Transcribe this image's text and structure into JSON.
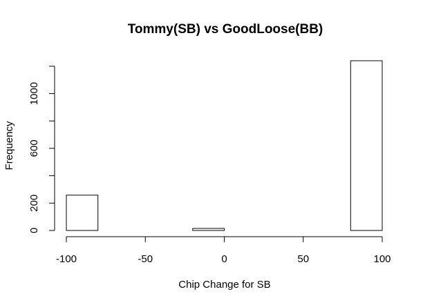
{
  "chart_data": {
    "type": "bar",
    "title": "Tommy(SB) vs GoodLoose(BB)",
    "xlabel": "Chip Change for SB",
    "ylabel": "Frequency",
    "bins": [
      {
        "from": -100,
        "to": -80,
        "count": 258
      },
      {
        "from": -80,
        "to": -60,
        "count": 0
      },
      {
        "from": -60,
        "to": -40,
        "count": 0
      },
      {
        "from": -40,
        "to": -20,
        "count": 0
      },
      {
        "from": -20,
        "to": 0,
        "count": 15
      },
      {
        "from": 0,
        "to": 20,
        "count": 0
      },
      {
        "from": 20,
        "to": 40,
        "count": 0
      },
      {
        "from": 40,
        "to": 60,
        "count": 0
      },
      {
        "from": 60,
        "to": 80,
        "count": 0
      },
      {
        "from": 80,
        "to": 100,
        "count": 1240
      }
    ],
    "xticks": [
      -100,
      -50,
      0,
      50,
      100
    ],
    "xtick_labels": [
      "-100",
      "-50",
      "0",
      "50",
      "100"
    ],
    "yticks": [
      0,
      200,
      600,
      1000
    ],
    "ytick_labels": [
      "0",
      "200",
      "600",
      "1000"
    ],
    "yminor_ticks": [
      400,
      800,
      1200
    ],
    "xlim": [
      -100,
      100
    ],
    "ylim": [
      0,
      1240
    ],
    "grid": false
  }
}
